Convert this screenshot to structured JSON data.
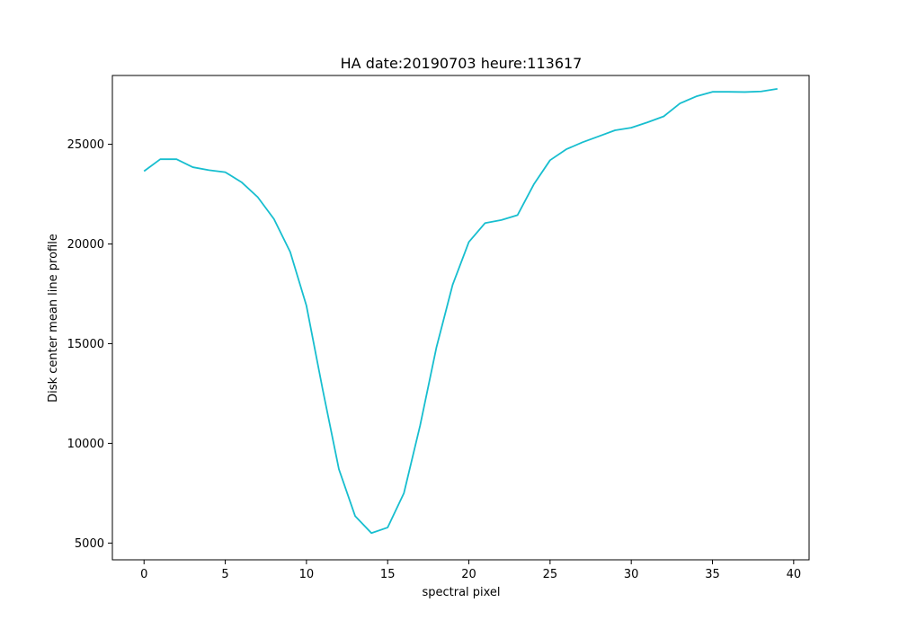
{
  "chart_data": {
    "type": "line",
    "title": "HA date:20190703 heure:113617",
    "xlabel": "spectral pixel",
    "ylabel": "Disk center mean line profile",
    "xlim": [
      -1.95,
      40.95
    ],
    "ylim": [
      4160,
      28450
    ],
    "xticks": [
      0,
      5,
      10,
      15,
      20,
      25,
      30,
      35,
      40
    ],
    "yticks": [
      5000,
      10000,
      15000,
      20000,
      25000
    ],
    "grid": false,
    "series": [
      {
        "color": "#17becf",
        "x": [
          0,
          1,
          2,
          3,
          4,
          5,
          6,
          7,
          8,
          9,
          10,
          11,
          12,
          13,
          14,
          15,
          16,
          17,
          18,
          19,
          20,
          21,
          22,
          23,
          24,
          25,
          26,
          27,
          28,
          29,
          30,
          31,
          32,
          33,
          34,
          35,
          36,
          37,
          38,
          39
        ],
        "y": [
          23650,
          24250,
          24250,
          23850,
          23700,
          23600,
          23100,
          22350,
          21250,
          19600,
          16900,
          12700,
          8700,
          6350,
          5500,
          5780,
          7500,
          10900,
          14800,
          17950,
          20100,
          21050,
          21200,
          21450,
          22990,
          24200,
          24750,
          25100,
          25400,
          25700,
          25830,
          26100,
          26400,
          27050,
          27400,
          27630,
          27630,
          27620,
          27650,
          27780
        ]
      }
    ]
  }
}
